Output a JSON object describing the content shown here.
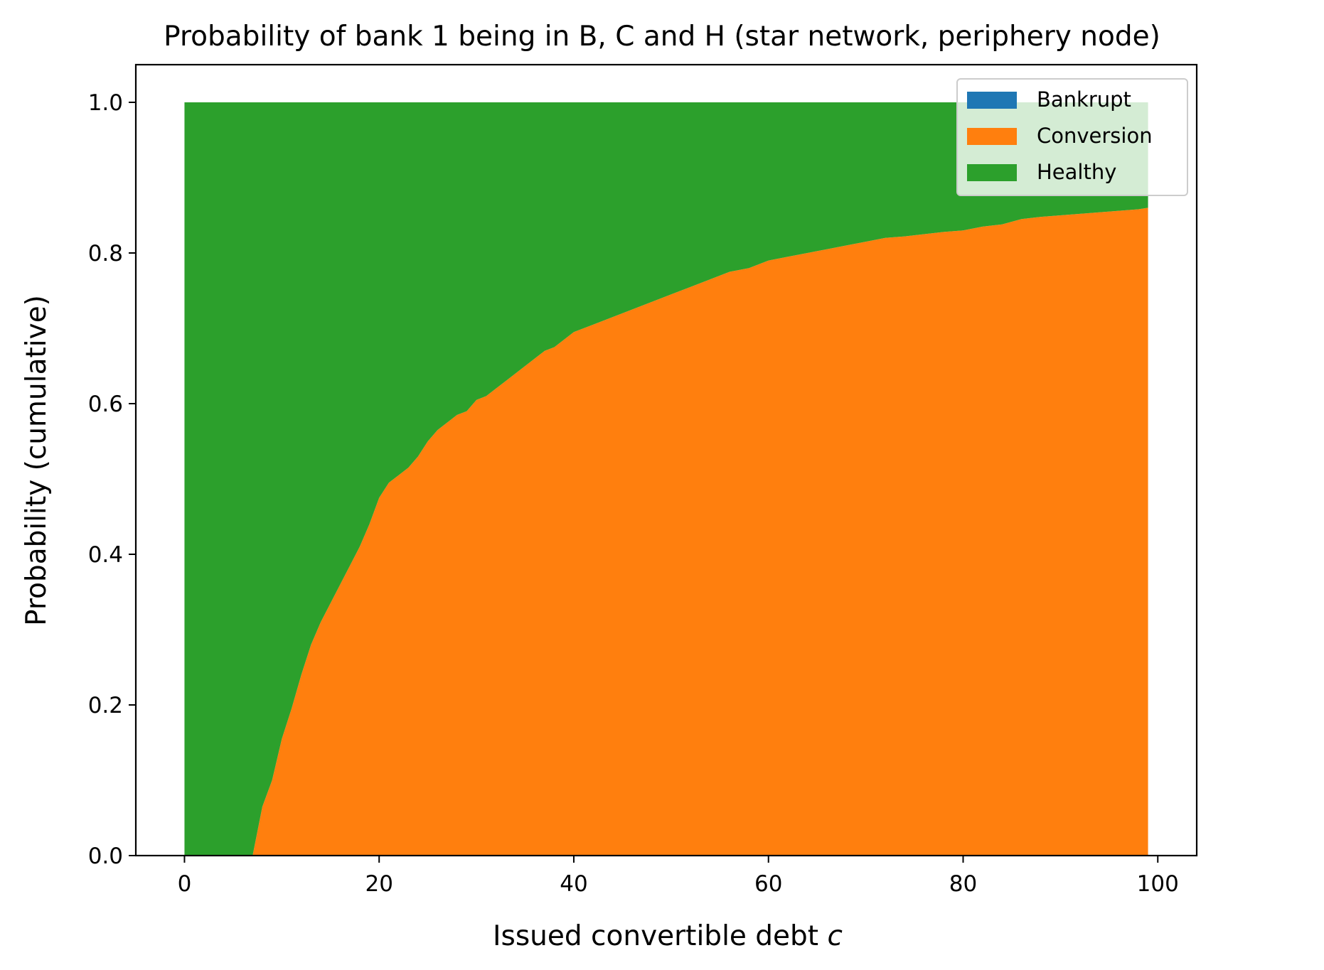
{
  "chart_data": {
    "type": "area",
    "stacked": true,
    "title": "Probability of bank 1 being in B, C and H (star network, periphery node)",
    "xlabel": "Issued convertible debt ",
    "xlabel_italic": "c",
    "ylabel": "Probability (cumulative)",
    "xlim": [
      -5,
      104
    ],
    "ylim": [
      0,
      1.05
    ],
    "x_ticks": [
      0,
      20,
      40,
      60,
      80,
      100
    ],
    "x_tick_labels": [
      "0",
      "20",
      "40",
      "60",
      "80",
      "100"
    ],
    "y_ticks": [
      0.0,
      0.2,
      0.4,
      0.6,
      0.8,
      1.0
    ],
    "y_tick_labels": [
      "0.0",
      "0.2",
      "0.4",
      "0.6",
      "0.8",
      "1.0"
    ],
    "grid": false,
    "legend_position": "top-right",
    "x": [
      0,
      7,
      8,
      9,
      10,
      11,
      12,
      13,
      14,
      15,
      16,
      17,
      18,
      19,
      20,
      21,
      22,
      23,
      24,
      25,
      26,
      27,
      28,
      29,
      30,
      31,
      32,
      33,
      34,
      35,
      36,
      37,
      38,
      39,
      40,
      42,
      44,
      46,
      48,
      50,
      52,
      54,
      56,
      58,
      60,
      62,
      64,
      66,
      68,
      70,
      72,
      74,
      76,
      78,
      80,
      82,
      84,
      86,
      88,
      90,
      92,
      94,
      96,
      98,
      99
    ],
    "series": [
      {
        "name": "Bankrupt",
        "color": "#1f77b4",
        "values": [
          0,
          0,
          0,
          0,
          0,
          0,
          0,
          0,
          0,
          0,
          0,
          0,
          0,
          0,
          0,
          0,
          0,
          0,
          0,
          0,
          0,
          0,
          0,
          0,
          0,
          0,
          0,
          0,
          0,
          0,
          0,
          0,
          0,
          0,
          0,
          0,
          0,
          0,
          0,
          0,
          0,
          0,
          0,
          0,
          0,
          0,
          0,
          0,
          0,
          0,
          0,
          0,
          0,
          0,
          0,
          0,
          0,
          0,
          0,
          0,
          0,
          0,
          0,
          0,
          0
        ]
      },
      {
        "name": "Conversion",
        "color": "#ff7f0e",
        "values": [
          0,
          0,
          0.065,
          0.1,
          0.155,
          0.195,
          0.24,
          0.28,
          0.31,
          0.335,
          0.36,
          0.385,
          0.41,
          0.44,
          0.475,
          0.495,
          0.505,
          0.515,
          0.53,
          0.55,
          0.565,
          0.575,
          0.585,
          0.59,
          0.605,
          0.61,
          0.62,
          0.63,
          0.64,
          0.65,
          0.66,
          0.67,
          0.675,
          0.685,
          0.695,
          0.705,
          0.715,
          0.725,
          0.735,
          0.745,
          0.755,
          0.765,
          0.775,
          0.78,
          0.79,
          0.795,
          0.8,
          0.805,
          0.81,
          0.815,
          0.82,
          0.822,
          0.825,
          0.828,
          0.83,
          0.835,
          0.838,
          0.845,
          0.848,
          0.85,
          0.852,
          0.854,
          0.856,
          0.858,
          0.86
        ]
      },
      {
        "name": "Healthy",
        "color": "#2ca02c",
        "values": [
          1,
          1,
          0.935,
          0.9,
          0.845,
          0.805,
          0.76,
          0.72,
          0.69,
          0.665,
          0.64,
          0.615,
          0.59,
          0.56,
          0.525,
          0.505,
          0.495,
          0.485,
          0.47,
          0.45,
          0.435,
          0.425,
          0.415,
          0.41,
          0.395,
          0.39,
          0.38,
          0.37,
          0.36,
          0.35,
          0.34,
          0.33,
          0.325,
          0.315,
          0.305,
          0.295,
          0.285,
          0.275,
          0.265,
          0.255,
          0.245,
          0.235,
          0.225,
          0.22,
          0.21,
          0.205,
          0.2,
          0.195,
          0.19,
          0.185,
          0.18,
          0.178,
          0.175,
          0.172,
          0.17,
          0.165,
          0.162,
          0.155,
          0.152,
          0.15,
          0.148,
          0.146,
          0.144,
          0.142,
          0.14
        ]
      }
    ]
  }
}
